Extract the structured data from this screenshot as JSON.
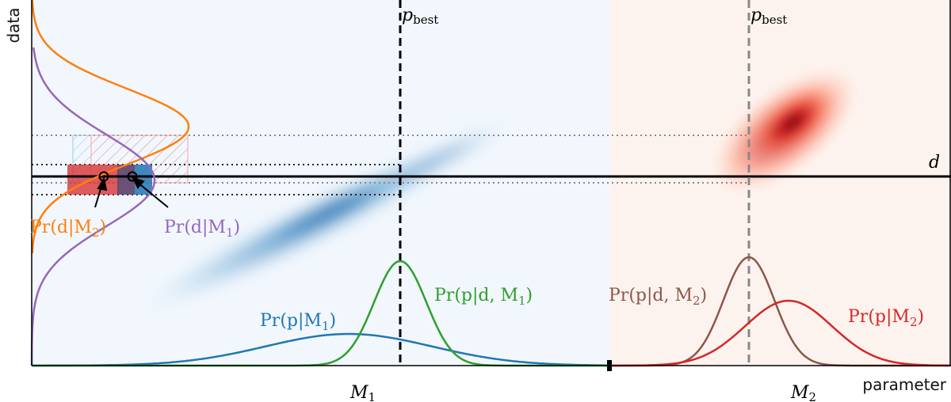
{
  "axes": {
    "x_label": "parameter",
    "y_label": "data"
  },
  "labels": {
    "pbest_1": "p",
    "pbest_2": "p",
    "pbest_sub": "best",
    "d": "d",
    "M1": "M",
    "M1_sub": "1",
    "M2": "M",
    "M2_sub": "2",
    "pr_d_M2": "Pr(d|M",
    "pr_d_M2_sub": "2",
    "pr_d_M1": "Pr(d|M",
    "pr_d_M1_sub": "1",
    "pr_p_M1": "Pr(p|M",
    "pr_p_M1_sub": "1",
    "pr_p_d_M1": "Pr(p|d, M",
    "pr_p_d_M1_sub": "1",
    "pr_p_d_M2": "Pr(p|d, M",
    "pr_p_d_M2_sub": "2",
    "pr_p_M2": "Pr(p|M",
    "pr_p_M2_sub": "2",
    "close_paren": ")"
  },
  "colors": {
    "M1_prior": "#1f77b4",
    "M1_posterior": "#2ca02c",
    "M2_prior": "#d62728",
    "M2_posterior": "#8c564b",
    "evidence_M1": "#9467bd",
    "evidence_M2": "#ff7f0e",
    "panel_M1_bg": "#f2f7fd",
    "panel_M2_bg": "#fdf3ee"
  }
}
